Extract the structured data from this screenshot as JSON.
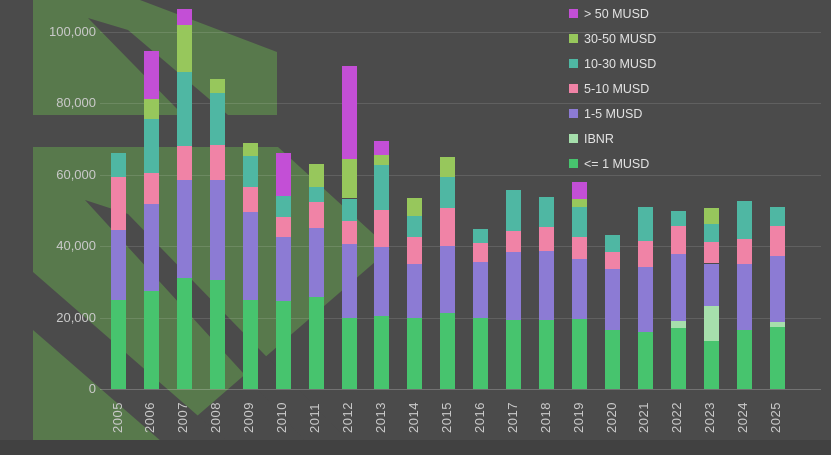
{
  "page": {
    "background_color": "#4b4b4b",
    "footer_strip_color": "#414141",
    "watermark_color": "#58794c",
    "axis_text_color": "#c9c9c9",
    "legend_text_color": "#e2e2e2"
  },
  "legend": {
    "position": "top-right",
    "items": [
      {
        "label": "> 50 MUSD",
        "color": "#c34fd6"
      },
      {
        "label": "30-50 MUSD",
        "color": "#97c75c"
      },
      {
        "label": "10-30 MUSD",
        "color": "#4fb7a3"
      },
      {
        "label": "5-10 MUSD",
        "color": "#f083a6"
      },
      {
        "label": "1-5 MUSD",
        "color": "#8c7bd4"
      },
      {
        "label": "IBNR",
        "color": "#a6dfac"
      },
      {
        "label": "<= 1 MUSD",
        "color": "#47c46e"
      }
    ]
  },
  "chart_data": {
    "type": "bar",
    "stacked": true,
    "title": "",
    "xlabel": "",
    "ylabel": "",
    "grid": true,
    "legend_position": "top-right",
    "x_label_rotation": -90,
    "ylim": [
      0,
      110000
    ],
    "yticks": [
      {
        "value": 0,
        "label": "0"
      },
      {
        "value": 20000,
        "label": "20,000"
      },
      {
        "value": 40000,
        "label": "40,000"
      },
      {
        "value": 60000,
        "label": "60,000"
      },
      {
        "value": 80000,
        "label": "80,000"
      },
      {
        "value": 100000,
        "label": "100,000"
      }
    ],
    "categories": [
      "2005",
      "2006",
      "2007",
      "2008",
      "2009",
      "2010",
      "2011",
      "2012",
      "2013",
      "2014",
      "2015",
      "2016",
      "2017",
      "2018",
      "2019",
      "2020",
      "2021",
      "2022",
      "2023",
      "2024",
      "2025"
    ],
    "series": [
      {
        "name": "<= 1 MUSD",
        "color": "#47c46e",
        "values": [
          25000,
          27300,
          31100,
          30600,
          25000,
          24500,
          25700,
          19800,
          20500,
          19800,
          21200,
          19800,
          19300,
          19300,
          19600,
          16500,
          16000,
          17000,
          13400,
          16500,
          17400
        ]
      },
      {
        "name": "IBNR",
        "color": "#a6dfac",
        "values": [
          0,
          0,
          0,
          0,
          0,
          0,
          0,
          0,
          0,
          0,
          0,
          0,
          0,
          0,
          0,
          0,
          0,
          1900,
          9900,
          0,
          1400
        ]
      },
      {
        "name": "1-5 MUSD",
        "color": "#8c7bd4",
        "values": [
          19400,
          24500,
          27400,
          27900,
          24500,
          17900,
          19300,
          20700,
          19100,
          15100,
          18700,
          15800,
          18900,
          19300,
          16700,
          17000,
          18200,
          18800,
          11800,
          18400,
          18400
        ]
      },
      {
        "name": "5-10 MUSD",
        "color": "#f083a6",
        "values": [
          15000,
          8500,
          9400,
          9900,
          7100,
          5700,
          7300,
          6600,
          10400,
          7500,
          10700,
          5300,
          6100,
          6600,
          6100,
          4900,
          7300,
          8000,
          6100,
          7100,
          8500
        ]
      },
      {
        "name": "10-30 MUSD",
        "color": "#4fb7a3",
        "values": [
          6600,
          15100,
          20700,
          14400,
          8500,
          5800,
          4300,
          6200,
          12700,
          6100,
          8800,
          4000,
          11300,
          8500,
          8500,
          4700,
          9400,
          4200,
          5000,
          10600,
          5200
        ]
      },
      {
        "name": "30-50 MUSD",
        "color": "#97c75c",
        "values": [
          0,
          5700,
          13200,
          3800,
          3800,
          0,
          6300,
          11100,
          2800,
          4900,
          5400,
          0,
          0,
          0,
          2200,
          0,
          0,
          0,
          4400,
          0,
          0
        ]
      },
      {
        "name": "> 50 MUSD",
        "color": "#c34fd6",
        "values": [
          0,
          13400,
          4500,
          0,
          0,
          12100,
          0,
          26100,
          4000,
          0,
          0,
          0,
          0,
          0,
          4700,
          0,
          0,
          0,
          0,
          0,
          0
        ]
      }
    ],
    "totals": [
      66000,
      94500,
      106300,
      86600,
      68900,
      66000,
      62900,
      90500,
      69500,
      53400,
      64800,
      44900,
      55600,
      53700,
      57800,
      43100,
      50900,
      49900,
      50600,
      52600,
      50900
    ]
  }
}
